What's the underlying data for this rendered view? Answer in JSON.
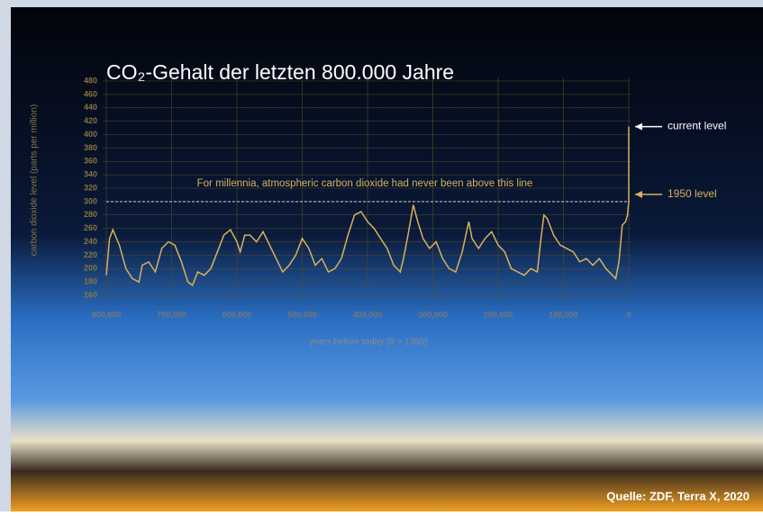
{
  "chart_data": {
    "type": "line",
    "title": "CO₂-Gehalt der letzten 800.000 Jahre",
    "y_label": "carbon dioxide level (parts per million)",
    "x_label": "years before today (0 = 1950)",
    "annotation": "For millennia, atmospheric carbon dioxide had never been above this line",
    "reference_value": 300,
    "current_label": "current level",
    "reference_label": "1950 level",
    "source": "Quelle: ZDF, Terra X, 2020",
    "color": "#d8b15a",
    "x_reversed": true,
    "grid": true,
    "xlim": [
      800000,
      0
    ],
    "xticks": [
      {
        "value": 800000,
        "label": "800,000"
      },
      {
        "value": 700000,
        "label": "700,000"
      },
      {
        "value": 600000,
        "label": "600,000"
      },
      {
        "value": 500000,
        "label": "500,000"
      },
      {
        "value": 400000,
        "label": "400,000"
      },
      {
        "value": 300000,
        "label": "300,000"
      },
      {
        "value": 200000,
        "label": "200,000"
      },
      {
        "value": 100000,
        "label": "100,000"
      },
      0
    ],
    "ylim": [
      160,
      480
    ],
    "yticks": [
      160,
      180,
      200,
      220,
      240,
      260,
      280,
      300,
      320,
      340,
      360,
      380,
      400,
      420,
      440,
      460,
      480
    ],
    "x": [
      800000,
      795000,
      790000,
      780000,
      770000,
      760000,
      750000,
      745000,
      735000,
      725000,
      715000,
      705000,
      695000,
      685000,
      675000,
      668000,
      660000,
      650000,
      640000,
      630000,
      620000,
      610000,
      600000,
      595000,
      588000,
      580000,
      570000,
      560000,
      550000,
      540000,
      530000,
      520000,
      510000,
      500000,
      490000,
      480000,
      470000,
      460000,
      450000,
      440000,
      430000,
      420000,
      410000,
      400000,
      390000,
      380000,
      370000,
      360000,
      350000,
      345000,
      338000,
      330000,
      323000,
      315000,
      305000,
      295000,
      285000,
      275000,
      265000,
      255000,
      245000,
      240000,
      230000,
      220000,
      210000,
      200000,
      190000,
      180000,
      170000,
      160000,
      150000,
      140000,
      135000,
      130000,
      125000,
      115000,
      105000,
      95000,
      85000,
      75000,
      65000,
      55000,
      45000,
      35000,
      25000,
      20000,
      15000,
      10000,
      5000,
      2000,
      0,
      0
    ],
    "values": [
      190,
      245,
      258,
      235,
      200,
      185,
      180,
      205,
      210,
      195,
      230,
      240,
      235,
      210,
      180,
      175,
      195,
      190,
      200,
      225,
      250,
      258,
      240,
      225,
      250,
      250,
      240,
      255,
      235,
      215,
      195,
      205,
      220,
      245,
      230,
      205,
      215,
      195,
      200,
      215,
      250,
      280,
      285,
      270,
      260,
      245,
      230,
      205,
      195,
      215,
      250,
      295,
      270,
      245,
      230,
      240,
      215,
      200,
      195,
      225,
      270,
      245,
      230,
      245,
      255,
      235,
      225,
      200,
      195,
      190,
      200,
      195,
      240,
      280,
      275,
      250,
      235,
      230,
      225,
      210,
      215,
      205,
      215,
      200,
      190,
      185,
      210,
      265,
      270,
      280,
      300,
      412
    ]
  }
}
